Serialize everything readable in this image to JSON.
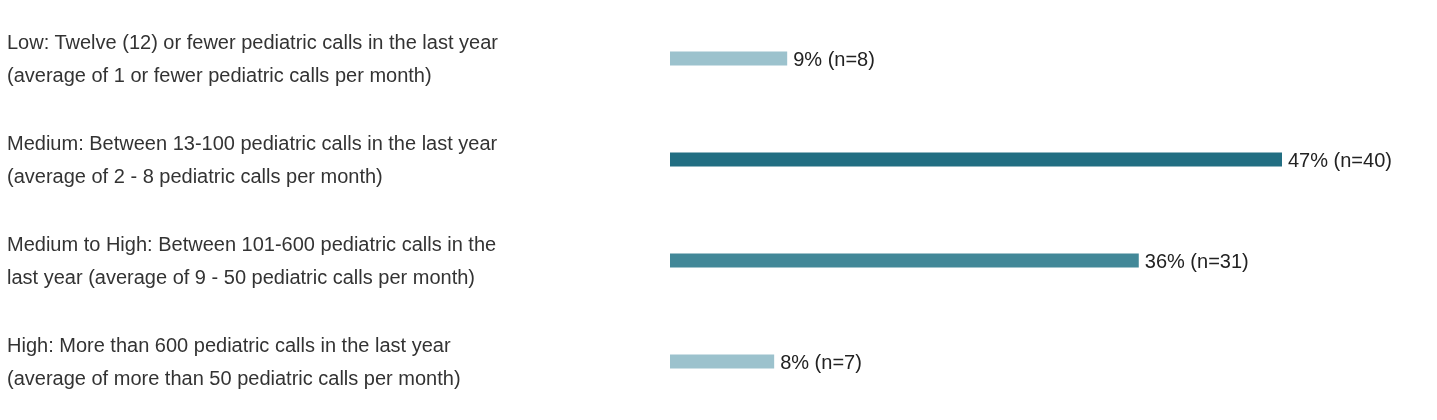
{
  "chart_data": {
    "type": "bar",
    "orientation": "horizontal",
    "categories": [
      "Low: Twelve (12) or fewer pediatric calls in the last year (average of 1 or fewer pediatric calls per month)",
      "Medium: Between 13-100 pediatric calls in the last year (average of 2 - 8 pediatric calls per month)",
      "Medium to High: Between 101-600 pediatric calls in the last year (average of 9 - 50 pediatric calls per month)",
      "High: More than 600 pediatric calls in the last year (average of more than 50 pediatric calls per month)"
    ],
    "values": [
      9,
      47,
      36,
      8
    ],
    "value_labels": [
      "9% (n=8)",
      "47% (n=40)",
      "36% (n=31)",
      "8% (n=7)"
    ],
    "colors": [
      "#9cc2cd",
      "#226e82",
      "#428898",
      "#9cc2cd"
    ]
  }
}
